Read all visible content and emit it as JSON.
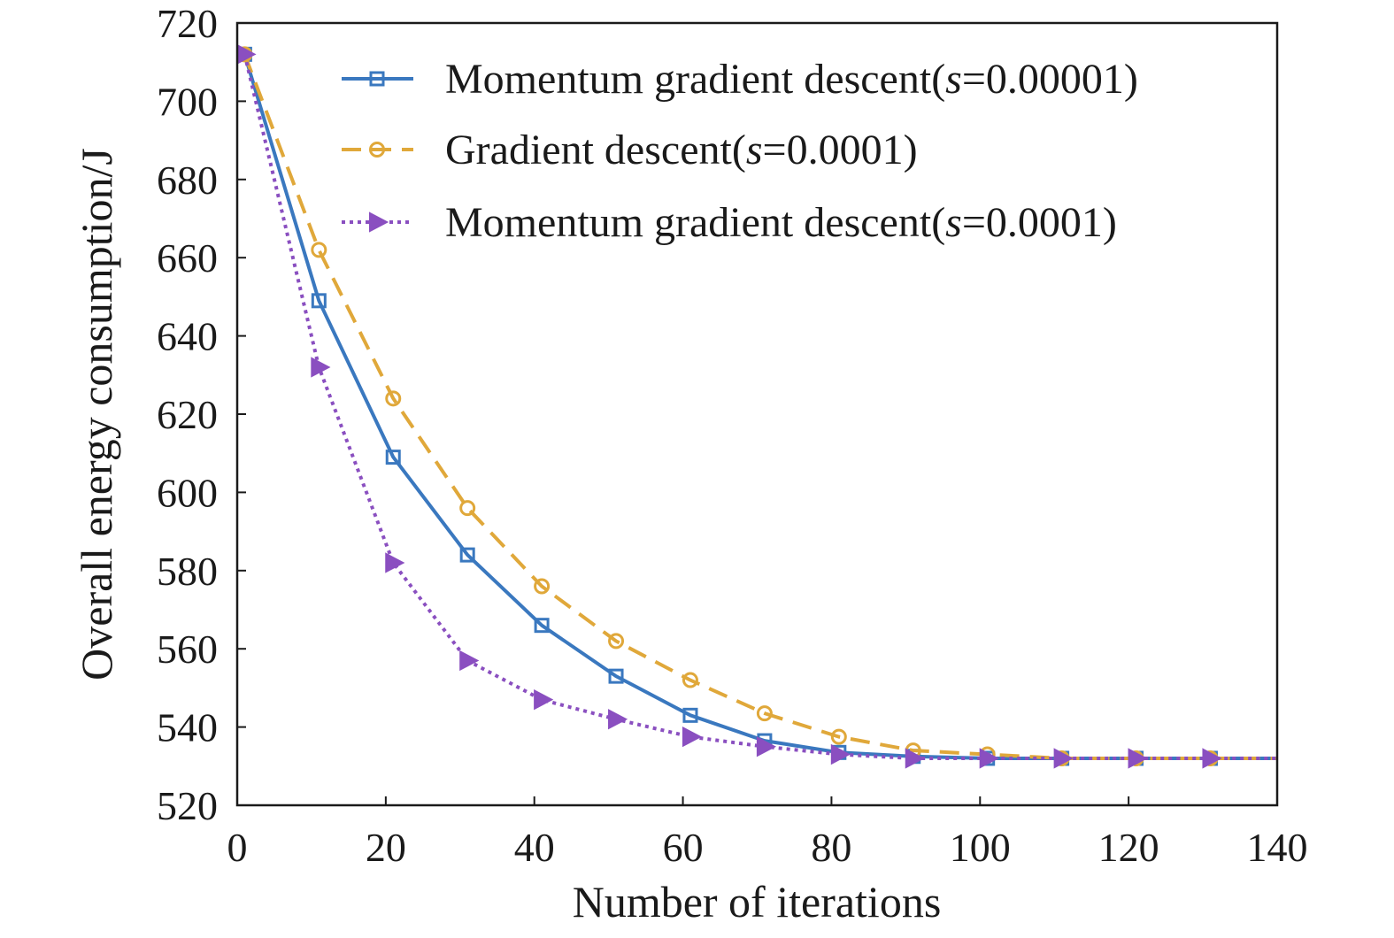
{
  "chart_data": {
    "type": "line",
    "title": "",
    "xlabel": "Number of iterations",
    "ylabel": "Overall energy consumption/J",
    "xlim": [
      0,
      140
    ],
    "ylim": [
      520,
      720
    ],
    "xticks": [
      0,
      20,
      40,
      60,
      80,
      100,
      120,
      140
    ],
    "yticks": [
      520,
      540,
      560,
      580,
      600,
      620,
      640,
      660,
      680,
      700,
      720
    ],
    "grid": false,
    "legend_position": "top-right",
    "series": [
      {
        "name_prefix": "Momentum gradient descent(",
        "name_var": "s",
        "name_suffix": "=0.00001)",
        "name": "Momentum gradient descent(s=0.00001)",
        "color": "#3a78bf",
        "dash": "solid",
        "marker": "square",
        "x": [
          1,
          11,
          21,
          31,
          41,
          51,
          61,
          71,
          81,
          91,
          101,
          111,
          121,
          131,
          140
        ],
        "y": [
          712,
          649,
          609,
          584,
          566,
          553,
          543,
          536.5,
          533.5,
          532.5,
          532,
          532,
          532,
          532,
          532
        ]
      },
      {
        "name_prefix": "Gradient descent(",
        "name_var": "s",
        "name_suffix": "=0.0001)",
        "name": "Gradient descent(s=0.0001)",
        "color": "#e0a83a",
        "dash": "dashed",
        "marker": "circle",
        "x": [
          1,
          11,
          21,
          31,
          41,
          51,
          61,
          71,
          81,
          91,
          101,
          111,
          121,
          131,
          140
        ],
        "y": [
          712,
          662,
          624,
          596,
          576,
          562,
          552,
          543.5,
          537.5,
          534,
          533,
          532,
          532,
          532,
          532
        ]
      },
      {
        "name_prefix": "Momentum gradient descent(",
        "name_var": "s",
        "name_suffix": "=0.0001)",
        "name": "Momentum gradient descent(s=0.0001)",
        "color": "#8a4fc0",
        "dash": "dotted",
        "marker": "triangle-right",
        "x": [
          1,
          11,
          21,
          31,
          41,
          51,
          61,
          71,
          81,
          91,
          101,
          111,
          121,
          131,
          140
        ],
        "y": [
          712,
          632,
          582,
          557,
          547,
          542,
          537.5,
          535,
          533,
          532,
          532,
          532,
          532,
          532,
          532
        ]
      }
    ]
  }
}
